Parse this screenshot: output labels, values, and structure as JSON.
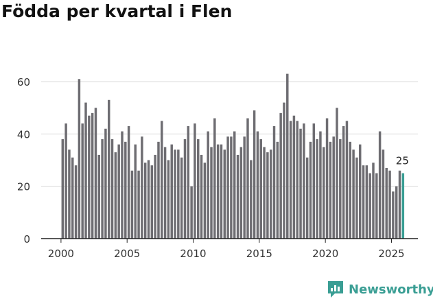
{
  "title": "Födda per kvartal i Flen",
  "brand": {
    "name": "Newsworthy",
    "icon": "newsworthy-logo-icon",
    "color": "#3a9e94"
  },
  "colors": {
    "bar": "#6e6d72",
    "highlight": "#3a9e94",
    "grid": "#d8d8d8",
    "axis": "#222222",
    "text": "#333333"
  },
  "chart_data": {
    "type": "bar",
    "title": "Födda per kvartal i Flen",
    "xlabel": "",
    "ylabel": "",
    "ylim": [
      0,
      65
    ],
    "yticks": [
      0,
      20,
      40,
      60
    ],
    "xlim": [
      1998.5,
      2027.0
    ],
    "xticks": [
      2000,
      2005,
      2010,
      2015,
      2020,
      2025
    ],
    "xtick_labels": [
      "2000",
      "2005",
      "2010",
      "2015",
      "2020",
      "2025"
    ],
    "grid": true,
    "start_year": 2000,
    "periods_per_year": 4,
    "highlight_last": true,
    "last_value_label": "25",
    "values": [
      38,
      44,
      34,
      31,
      28,
      61,
      44,
      52,
      47,
      48,
      50,
      32,
      38,
      42,
      53,
      38,
      33,
      36,
      41,
      37,
      43,
      26,
      36,
      26,
      39,
      29,
      30,
      28,
      32,
      37,
      45,
      35,
      30,
      36,
      34,
      34,
      31,
      38,
      43,
      20,
      44,
      38,
      32,
      29,
      41,
      35,
      46,
      36,
      36,
      34,
      39,
      39,
      41,
      32,
      35,
      39,
      46,
      30,
      49,
      41,
      38,
      35,
      33,
      34,
      43,
      37,
      48,
      52,
      63,
      45,
      47,
      45,
      42,
      44,
      31,
      37,
      44,
      38,
      41,
      35,
      46,
      37,
      39,
      50,
      38,
      43,
      45,
      37,
      34,
      31,
      36,
      28,
      28,
      25,
      29,
      25,
      41,
      34,
      27,
      26,
      18,
      20,
      26,
      25
    ]
  }
}
